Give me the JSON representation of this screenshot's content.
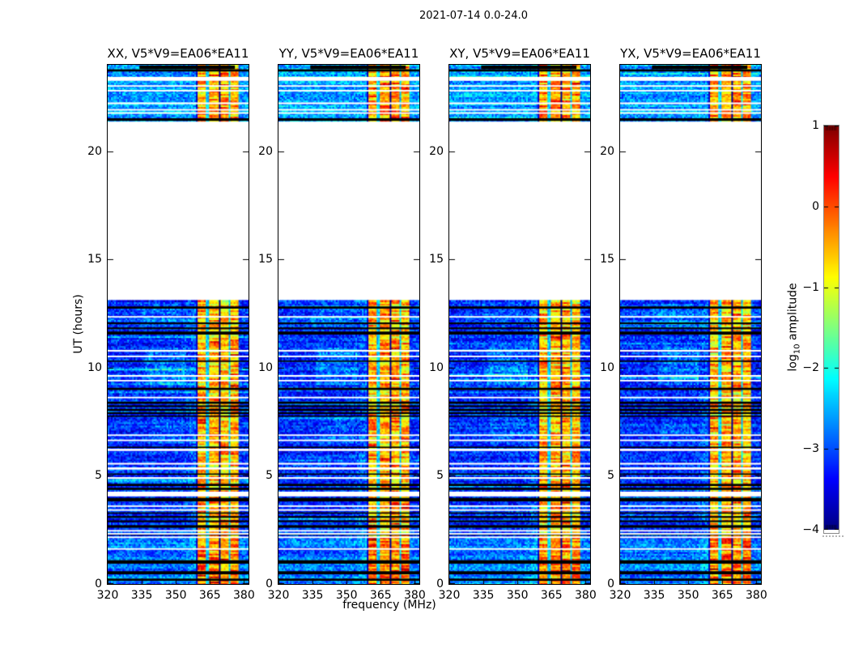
{
  "figure": {
    "title": "2021-07-14 0.0-24.0",
    "background": "#ffffff"
  },
  "chart_data": {
    "type": "heatmap",
    "title": "2021-07-14 0.0-24.0",
    "xlabel": "frequency (MHz)",
    "ylabel": "UT (hours)",
    "x_range": [
      320,
      382
    ],
    "y_range": [
      0,
      24
    ],
    "x_ticks": [
      320,
      335,
      350,
      365,
      380
    ],
    "y_ticks": [
      0,
      5,
      10,
      15,
      20
    ],
    "grid": false,
    "panels": [
      {
        "label": "XX, V5*V9=EA06*EA11",
        "pol": "XX",
        "seed": 101
      },
      {
        "label": "YY, V5*V9=EA06*EA11",
        "pol": "YY",
        "seed": 202
      },
      {
        "label": "XY, V5*V9=EA06*EA11",
        "pol": "XY",
        "seed": 303
      },
      {
        "label": "YX, V5*V9=EA06*EA11",
        "pol": "YX",
        "seed": 404
      }
    ],
    "colorbar": {
      "label_prefix": "log",
      "label_sub": "10",
      "label_suffix": "amplitude",
      "ticks": [
        1,
        0,
        -1,
        -2,
        -3,
        -4
      ],
      "vmin": -4,
      "vmax": 1,
      "colormap": "jet"
    },
    "time_segments": [
      {
        "t0": 0.0,
        "t1": 13.05,
        "base": -3.15
      },
      {
        "t0": 21.4,
        "t1": 24.0,
        "base": -2.6
      }
    ],
    "bright_interval": {
      "t0": 0.0,
      "t1": 2.1,
      "base": -2.8
    },
    "rfi_bands": [
      {
        "f0": 359.4,
        "f1": 363.1
      },
      {
        "f0": 364.0,
        "f1": 368.6
      },
      {
        "f0": 369.6,
        "f1": 373.1
      },
      {
        "f0": 374.0,
        "f1": 377.6
      }
    ],
    "rfi_dark_edge": {
      "f0": 358.3,
      "f1": 359.4
    },
    "partial_black_segment": {
      "t0": 23.8,
      "t1": 23.97,
      "f0": 334,
      "f1": 376
    },
    "black_stripes": [
      {
        "t": 23.74,
        "h": 0.1
      },
      {
        "t": 21.47,
        "h": 0.12
      },
      {
        "t": 12.78,
        "h": 0.1
      },
      {
        "t": 12.05,
        "h": 0.08
      },
      {
        "t": 11.82,
        "h": 0.08
      },
      {
        "t": 11.6,
        "h": 0.14
      },
      {
        "t": 10.3,
        "h": 0.06
      },
      {
        "t": 9.02,
        "h": 0.1
      },
      {
        "t": 8.38,
        "h": 0.1
      },
      {
        "t": 8.22,
        "h": 0.08
      },
      {
        "t": 8.05,
        "h": 0.1
      },
      {
        "t": 7.9,
        "h": 0.08
      },
      {
        "t": 7.76,
        "h": 0.06
      },
      {
        "t": 6.32,
        "h": 0.06
      },
      {
        "t": 5.08,
        "h": 0.06
      },
      {
        "t": 4.58,
        "h": 0.1
      },
      {
        "t": 4.4,
        "h": 0.1
      },
      {
        "t": 3.9,
        "h": 0.16
      },
      {
        "t": 3.28,
        "h": 0.06
      },
      {
        "t": 3.1,
        "h": 0.08
      },
      {
        "t": 2.9,
        "h": 0.08
      },
      {
        "t": 2.66,
        "h": 0.12
      },
      {
        "t": 2.3,
        "h": 0.08
      },
      {
        "t": 1.02,
        "h": 0.16
      },
      {
        "t": 0.52,
        "h": 0.14
      },
      {
        "t": 0.2,
        "h": 0.1
      }
    ],
    "white_stripes": [
      {
        "t": 23.35,
        "h": 0.18
      },
      {
        "t": 23.02,
        "h": 0.07
      },
      {
        "t": 22.8,
        "h": 0.07
      },
      {
        "t": 22.22,
        "h": 0.08
      },
      {
        "t": 21.92,
        "h": 0.07
      },
      {
        "t": 21.77,
        "h": 0.07
      },
      {
        "t": 12.35,
        "h": 0.07
      },
      {
        "t": 10.78,
        "h": 0.08
      },
      {
        "t": 10.52,
        "h": 0.07
      },
      {
        "t": 9.62,
        "h": 0.08
      },
      {
        "t": 9.4,
        "h": 0.07
      },
      {
        "t": 8.62,
        "h": 0.07
      },
      {
        "t": 6.88,
        "h": 0.07
      },
      {
        "t": 6.64,
        "h": 0.07
      },
      {
        "t": 6.2,
        "h": 0.1
      },
      {
        "t": 5.56,
        "h": 0.08
      },
      {
        "t": 5.34,
        "h": 0.1
      },
      {
        "t": 4.9,
        "h": 0.08
      },
      {
        "t": 4.16,
        "h": 0.22
      },
      {
        "t": 3.6,
        "h": 0.07
      },
      {
        "t": 3.42,
        "h": 0.07
      },
      {
        "t": 2.46,
        "h": 0.07
      },
      {
        "t": 2.32,
        "h": 0.07
      },
      {
        "t": 2.16,
        "h": 0.07
      },
      {
        "t": 1.62,
        "h": 0.07
      }
    ],
    "cyan_patches": [
      {
        "t0": 9.2,
        "t1": 10.9,
        "f0": 336,
        "f1": 354,
        "boost": 0.5
      },
      {
        "t0": 11.9,
        "t1": 12.95,
        "f0": 334,
        "f1": 352,
        "boost": 0.3
      },
      {
        "t0": 6.5,
        "t1": 7.7,
        "f0": 338,
        "f1": 353,
        "boost": 0.25
      }
    ]
  }
}
